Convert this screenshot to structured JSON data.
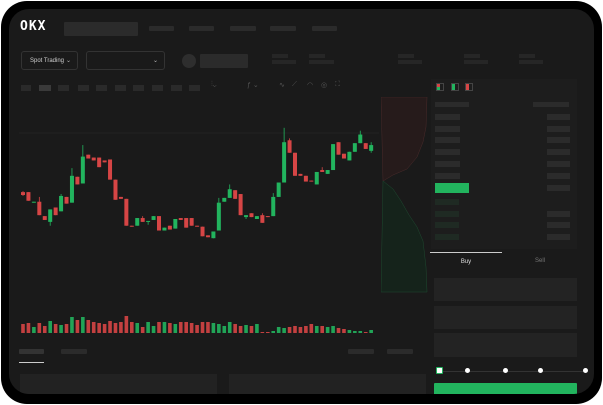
{
  "header": {
    "logo": "OKX"
  },
  "market": {
    "mode_dropdown": "Spot Trading"
  },
  "orderbook": {
    "view_icons": [
      "orderbook-both-icon",
      "orderbook-bids-icon",
      "orderbook-asks-icon"
    ]
  },
  "trade": {
    "tabs": [
      {
        "label": "Buy",
        "active": true
      },
      {
        "label": "Sell",
        "active": false
      }
    ],
    "slider_stops": 5,
    "slider_value": 0
  },
  "colors": {
    "up": "#22b45e",
    "down": "#d64545",
    "background": "#1a1a1a",
    "buy_button": "#22b45e"
  },
  "chart_data": {
    "type": "candlestick",
    "ohlc": [
      [
        68,
        69,
        64,
        65
      ],
      [
        68,
        68,
        59,
        59
      ],
      [
        57,
        58,
        57,
        58
      ],
      [
        58,
        63,
        44,
        44
      ],
      [
        43,
        43,
        39,
        39
      ],
      [
        37,
        50,
        33,
        50
      ],
      [
        52,
        52,
        44,
        44
      ],
      [
        48,
        66,
        48,
        64
      ],
      [
        63,
        63,
        56,
        56
      ],
      [
        57,
        93,
        57,
        85
      ],
      [
        84,
        84,
        76,
        76
      ],
      [
        77,
        117,
        77,
        105
      ],
      [
        107,
        107,
        103,
        103
      ],
      [
        104,
        104,
        101,
        101
      ],
      [
        104,
        104,
        94,
        94
      ],
      [
        101,
        101,
        99,
        99
      ],
      [
        102,
        102,
        81,
        81
      ],
      [
        81,
        81,
        60,
        60
      ],
      [
        63,
        63,
        61,
        61
      ],
      [
        61,
        61,
        33,
        33
      ],
      [
        33,
        33,
        32,
        32
      ],
      [
        33,
        41,
        33,
        41
      ],
      [
        41,
        43,
        37,
        37
      ],
      [
        37,
        38,
        34,
        38
      ],
      [
        39,
        43,
        39,
        43
      ],
      [
        43,
        43,
        28,
        28
      ],
      [
        28,
        31,
        28,
        31
      ],
      [
        33,
        33,
        29,
        29
      ],
      [
        30,
        40,
        30,
        40
      ],
      [
        41,
        41,
        39,
        39
      ],
      [
        41,
        41,
        31,
        31
      ],
      [
        41,
        41,
        33,
        33
      ],
      [
        33,
        33,
        32,
        32
      ],
      [
        32,
        32,
        22,
        22
      ],
      [
        23,
        23,
        21,
        21
      ],
      [
        20,
        27,
        20,
        27
      ],
      [
        28,
        62,
        28,
        57
      ],
      [
        58,
        62,
        58,
        62
      ],
      [
        62,
        76,
        62,
        71
      ],
      [
        70,
        70,
        61,
        61
      ],
      [
        66,
        66,
        44,
        44
      ],
      [
        42,
        44,
        40,
        44
      ],
      [
        46,
        46,
        42,
        42
      ],
      [
        40,
        43,
        40,
        43
      ],
      [
        44,
        46,
        36,
        36
      ],
      [
        43,
        43,
        42,
        42
      ],
      [
        43,
        67,
        43,
        63
      ],
      [
        63,
        78,
        63,
        78
      ],
      [
        78,
        135,
        78,
        120
      ],
      [
        122,
        124,
        109,
        109
      ],
      [
        109,
        109,
        85,
        85
      ],
      [
        87,
        87,
        85,
        85
      ],
      [
        85,
        85,
        79,
        79
      ],
      [
        80,
        80,
        79,
        79
      ],
      [
        76,
        89,
        76,
        89
      ],
      [
        91,
        94,
        89,
        89
      ],
      [
        87,
        91,
        87,
        91
      ],
      [
        91,
        118,
        91,
        118
      ],
      [
        120,
        120,
        107,
        107
      ],
      [
        108,
        108,
        103,
        103
      ],
      [
        101,
        110,
        101,
        110
      ],
      [
        110,
        119,
        110,
        119
      ],
      [
        119,
        132,
        119,
        128
      ],
      [
        119,
        119,
        113,
        113
      ],
      [
        111,
        120,
        109,
        117
      ]
    ],
    "volume": [
      10,
      11,
      7,
      11,
      8,
      13,
      10,
      9,
      10,
      17,
      14,
      17,
      14,
      12,
      11,
      10,
      13,
      11,
      12,
      18,
      12,
      11,
      7,
      12,
      8,
      12,
      12,
      11,
      10,
      12,
      12,
      11,
      9,
      12,
      12,
      11,
      10,
      8,
      12,
      10,
      8,
      9,
      8,
      10,
      2,
      2,
      3,
      7,
      6,
      7,
      8,
      7,
      8,
      10,
      8,
      8,
      7,
      8,
      6,
      5,
      4,
      3,
      3,
      2,
      4
    ],
    "ylim": [
      15,
      140
    ],
    "grid": false
  }
}
